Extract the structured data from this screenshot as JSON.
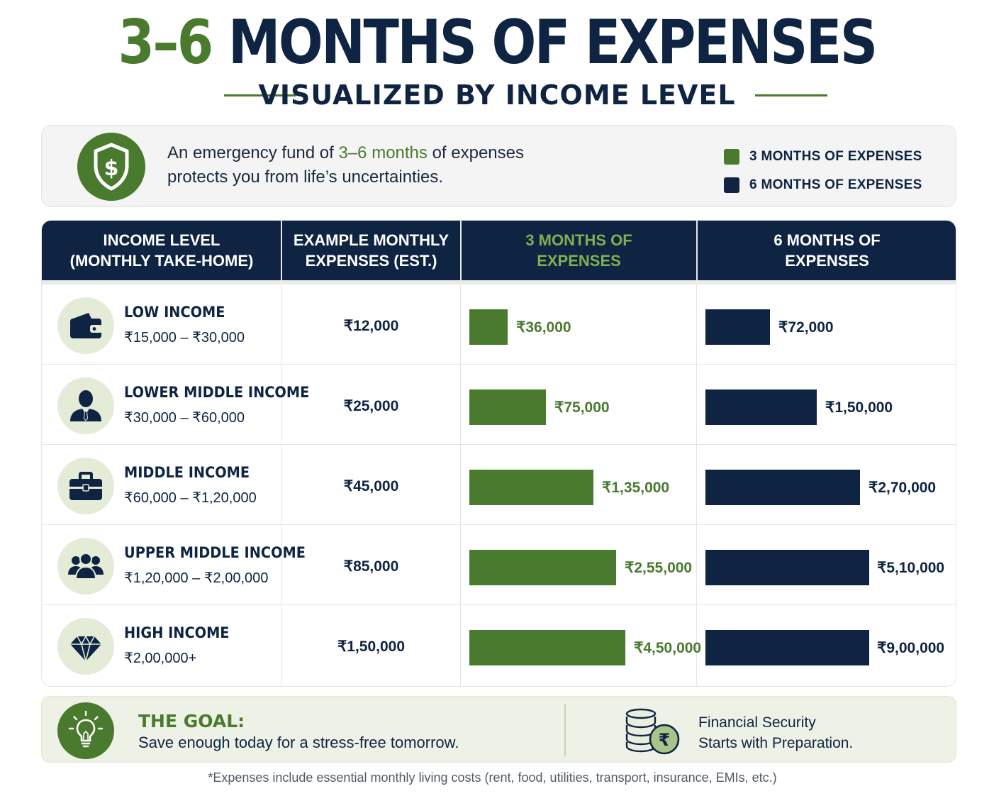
{
  "title": {
    "green": "3–6",
    "navy": "MONTHS OF EXPENSES"
  },
  "subtitle": "VISUALIZED BY INCOME LEVEL",
  "intro": {
    "text_before": "An emergency fund of ",
    "highlight": "3–6 months",
    "text_after": " of expenses",
    "line2": "protects you from life’s uncertainties."
  },
  "colors": {
    "green": "#4a7a2e",
    "navy": "#0f2442"
  },
  "legend": [
    {
      "label": "3 MONTHS OF EXPENSES",
      "color": "#4a7a2e"
    },
    {
      "label": "6 MONTHS OF EXPENSES",
      "color": "#0f2442"
    }
  ],
  "table": {
    "headers": [
      "INCOME LEVEL\n(MONTHLY TAKE-HOME)",
      "EXAMPLE MONTHLY\nEXPENSES (EST.)",
      "3 MONTHS OF\nEXPENSES",
      "6 MONTHS OF\nEXPENSES"
    ],
    "rows": [
      {
        "icon": "wallet-icon",
        "name": "LOW INCOME",
        "range": "₹15,000 – ₹30,000",
        "expense": "₹12,000",
        "three_label": "₹36,000",
        "six_label": "₹72,000"
      },
      {
        "icon": "businessman-icon",
        "name": "LOWER MIDDLE INCOME",
        "range": "₹30,000 – ₹60,000",
        "expense": "₹25,000",
        "three_label": "₹75,000",
        "six_label": "₹1,50,000"
      },
      {
        "icon": "briefcase-icon",
        "name": "MIDDLE INCOME",
        "range": "₹60,000 – ₹1,20,000",
        "expense": "₹45,000",
        "three_label": "₹1,35,000",
        "six_label": "₹2,70,000"
      },
      {
        "icon": "group-icon",
        "name": "UPPER MIDDLE INCOME",
        "range": "₹1,20,000 – ₹2,00,000",
        "expense": "₹85,000",
        "three_label": "₹2,55,000",
        "six_label": "₹5,10,000"
      },
      {
        "icon": "diamond-icon",
        "name": "HIGH INCOME",
        "range": "₹2,00,000+",
        "expense": "₹1,50,000",
        "three_label": "₹4,50,000",
        "six_label": "₹9,00,000"
      }
    ]
  },
  "chart_data": {
    "type": "bar",
    "categories": [
      "LOW INCOME",
      "LOWER MIDDLE INCOME",
      "MIDDLE INCOME",
      "UPPER MIDDLE INCOME",
      "HIGH INCOME"
    ],
    "series": [
      {
        "name": "3 MONTHS OF EXPENSES",
        "values": [
          36000,
          75000,
          135000,
          255000,
          450000
        ]
      },
      {
        "name": "6 MONTHS OF EXPENSES",
        "values": [
          72000,
          150000,
          270000,
          510000,
          900000
        ]
      }
    ],
    "bar_fractions": {
      "three": [
        0.246,
        0.493,
        0.796,
        0.94,
        1.0
      ],
      "six": [
        0.393,
        0.681,
        0.943,
        1.0,
        1.0
      ]
    }
  },
  "goal": {
    "title": "THE GOAL:",
    "subtitle": "Save enough today for a stress-free tomorrow.",
    "right_line1": "Financial Security",
    "right_line2": "Starts with Preparation."
  },
  "footnote": "*Expenses include essential monthly living costs (rent, food, utilities, transport, insurance, EMIs, etc.)"
}
